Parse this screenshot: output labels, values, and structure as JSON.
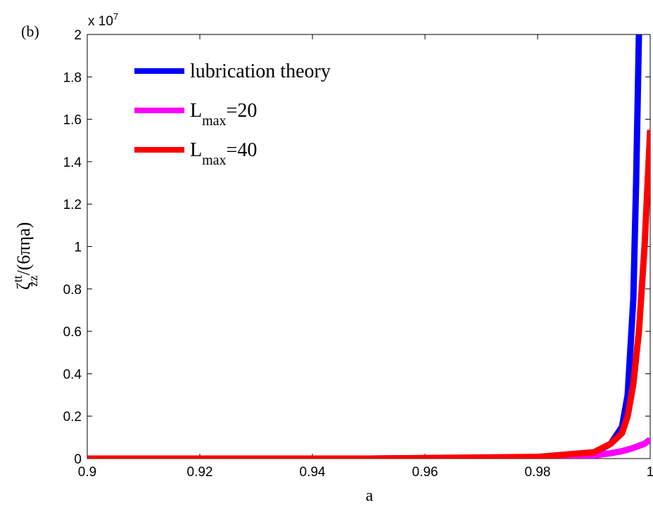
{
  "chart_data": {
    "type": "line",
    "panel_label": "(b)",
    "xlabel": "a",
    "ylabel": {
      "symbol": "ζ",
      "superscript": "tt",
      "subscript": "zz",
      "suffix": "/(6πηa)"
    },
    "y_exponent_label": "x 10",
    "y_exponent_power": "7",
    "xlim": [
      0.9,
      1.0
    ],
    "ylim": [
      0,
      2.0
    ],
    "y_scale_factor": 10000000,
    "xticks": [
      "0.9",
      "0.92",
      "0.94",
      "0.96",
      "0.98",
      "1"
    ],
    "xtick_values": [
      0.9,
      0.92,
      0.94,
      0.96,
      0.98,
      1.0
    ],
    "yticks": [
      "0",
      "0.2",
      "0.4",
      "0.6",
      "0.8",
      "1",
      "1.2",
      "1.4",
      "1.6",
      "1.8",
      "2"
    ],
    "ytick_values": [
      0,
      0.2,
      0.4,
      0.6,
      0.8,
      1.0,
      1.2,
      1.4,
      1.6,
      1.8,
      2.0
    ],
    "grid": false,
    "legend_position": "top-left",
    "series": [
      {
        "name": "lubrication theory",
        "legend": {
          "main": "lubrication theory"
        },
        "color": "#0000ff",
        "x": [
          0.9,
          0.95,
          0.98,
          0.99,
          0.993,
          0.995,
          0.996,
          0.997,
          0.9975,
          0.998
        ],
        "y": [
          0.0,
          0.0,
          0.005,
          0.025,
          0.07,
          0.15,
          0.3,
          0.75,
          1.3,
          2.0
        ]
      },
      {
        "name": "L_max=20",
        "legend": {
          "main": "L",
          "sub": "max",
          "rest": "=20"
        },
        "color": "#ff00ff",
        "x": [
          0.9,
          0.95,
          0.98,
          0.99,
          0.993,
          0.995,
          0.997,
          0.999,
          1.0
        ],
        "y": [
          0.0,
          0.0,
          0.005,
          0.015,
          0.025,
          0.035,
          0.05,
          0.07,
          0.09
        ]
      },
      {
        "name": "L_max=40",
        "legend": {
          "main": "L",
          "sub": "max",
          "rest": "=40"
        },
        "color": "#ff0000",
        "x": [
          0.9,
          0.95,
          0.98,
          0.99,
          0.993,
          0.995,
          0.996,
          0.997,
          0.998,
          0.999,
          1.0
        ],
        "y": [
          0.0,
          0.0,
          0.008,
          0.03,
          0.07,
          0.12,
          0.2,
          0.35,
          0.6,
          1.0,
          1.55
        ]
      }
    ]
  }
}
